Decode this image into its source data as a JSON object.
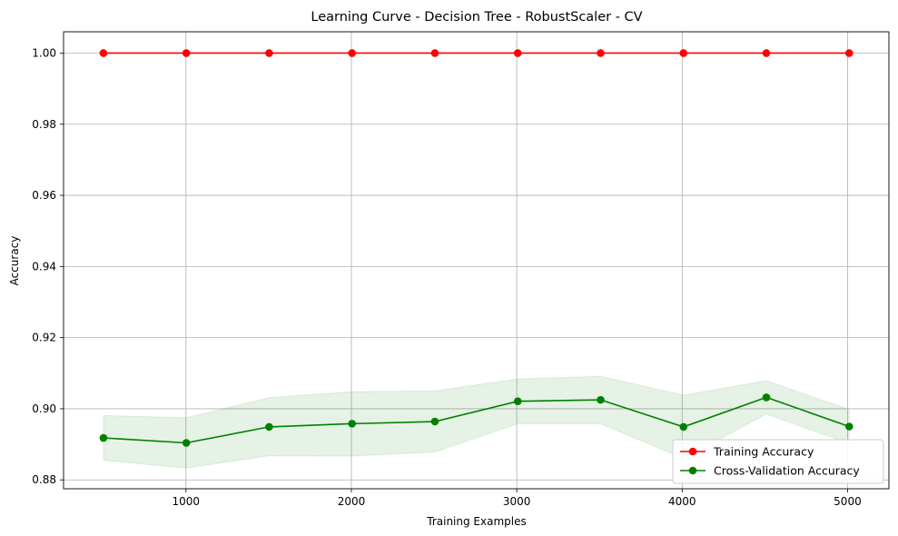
{
  "chart_data": {
    "type": "line",
    "title": "Learning Curve - Decision Tree - RobustScaler - CV",
    "xlabel": "Training Examples",
    "ylabel": "Accuracy",
    "xlim": [
      260,
      5250
    ],
    "ylim": [
      0.8775,
      1.006
    ],
    "xticks": [
      1000,
      2000,
      3000,
      4000,
      5000
    ],
    "yticks": [
      0.88,
      0.9,
      0.92,
      0.94,
      0.96,
      0.98,
      1.0
    ],
    "ytick_labels": [
      "0.88",
      "0.90",
      "0.92",
      "0.94",
      "0.96",
      "0.98",
      "1.00"
    ],
    "grid": true,
    "legend_position": "lower-right",
    "x": [
      501,
      1002,
      1503,
      2004,
      2505,
      3006,
      3507,
      4008,
      4509,
      5010
    ],
    "series": [
      {
        "name": "Training Accuracy",
        "color": "#ff0000",
        "values": [
          1.0,
          1.0,
          1.0,
          1.0,
          1.0,
          1.0,
          1.0,
          1.0,
          1.0,
          1.0
        ],
        "band_low": [
          1.0,
          1.0,
          1.0,
          1.0,
          1.0,
          1.0,
          1.0,
          1.0,
          1.0,
          1.0
        ],
        "band_high": [
          1.0,
          1.0,
          1.0,
          1.0,
          1.0,
          1.0,
          1.0,
          1.0,
          1.0,
          1.0
        ]
      },
      {
        "name": "Cross-Validation Accuracy",
        "color": "#008000",
        "values": [
          0.8918,
          0.8904,
          0.8949,
          0.8958,
          0.8964,
          0.9021,
          0.9025,
          0.8949,
          0.9032,
          0.895
        ],
        "band_low": [
          0.8855,
          0.8833,
          0.8868,
          0.8867,
          0.8878,
          0.8958,
          0.8958,
          0.886,
          0.8985,
          0.8902
        ],
        "band_high": [
          0.8981,
          0.8975,
          0.9031,
          0.9048,
          0.905,
          0.9084,
          0.9091,
          0.9038,
          0.9079,
          0.8998
        ]
      }
    ]
  }
}
